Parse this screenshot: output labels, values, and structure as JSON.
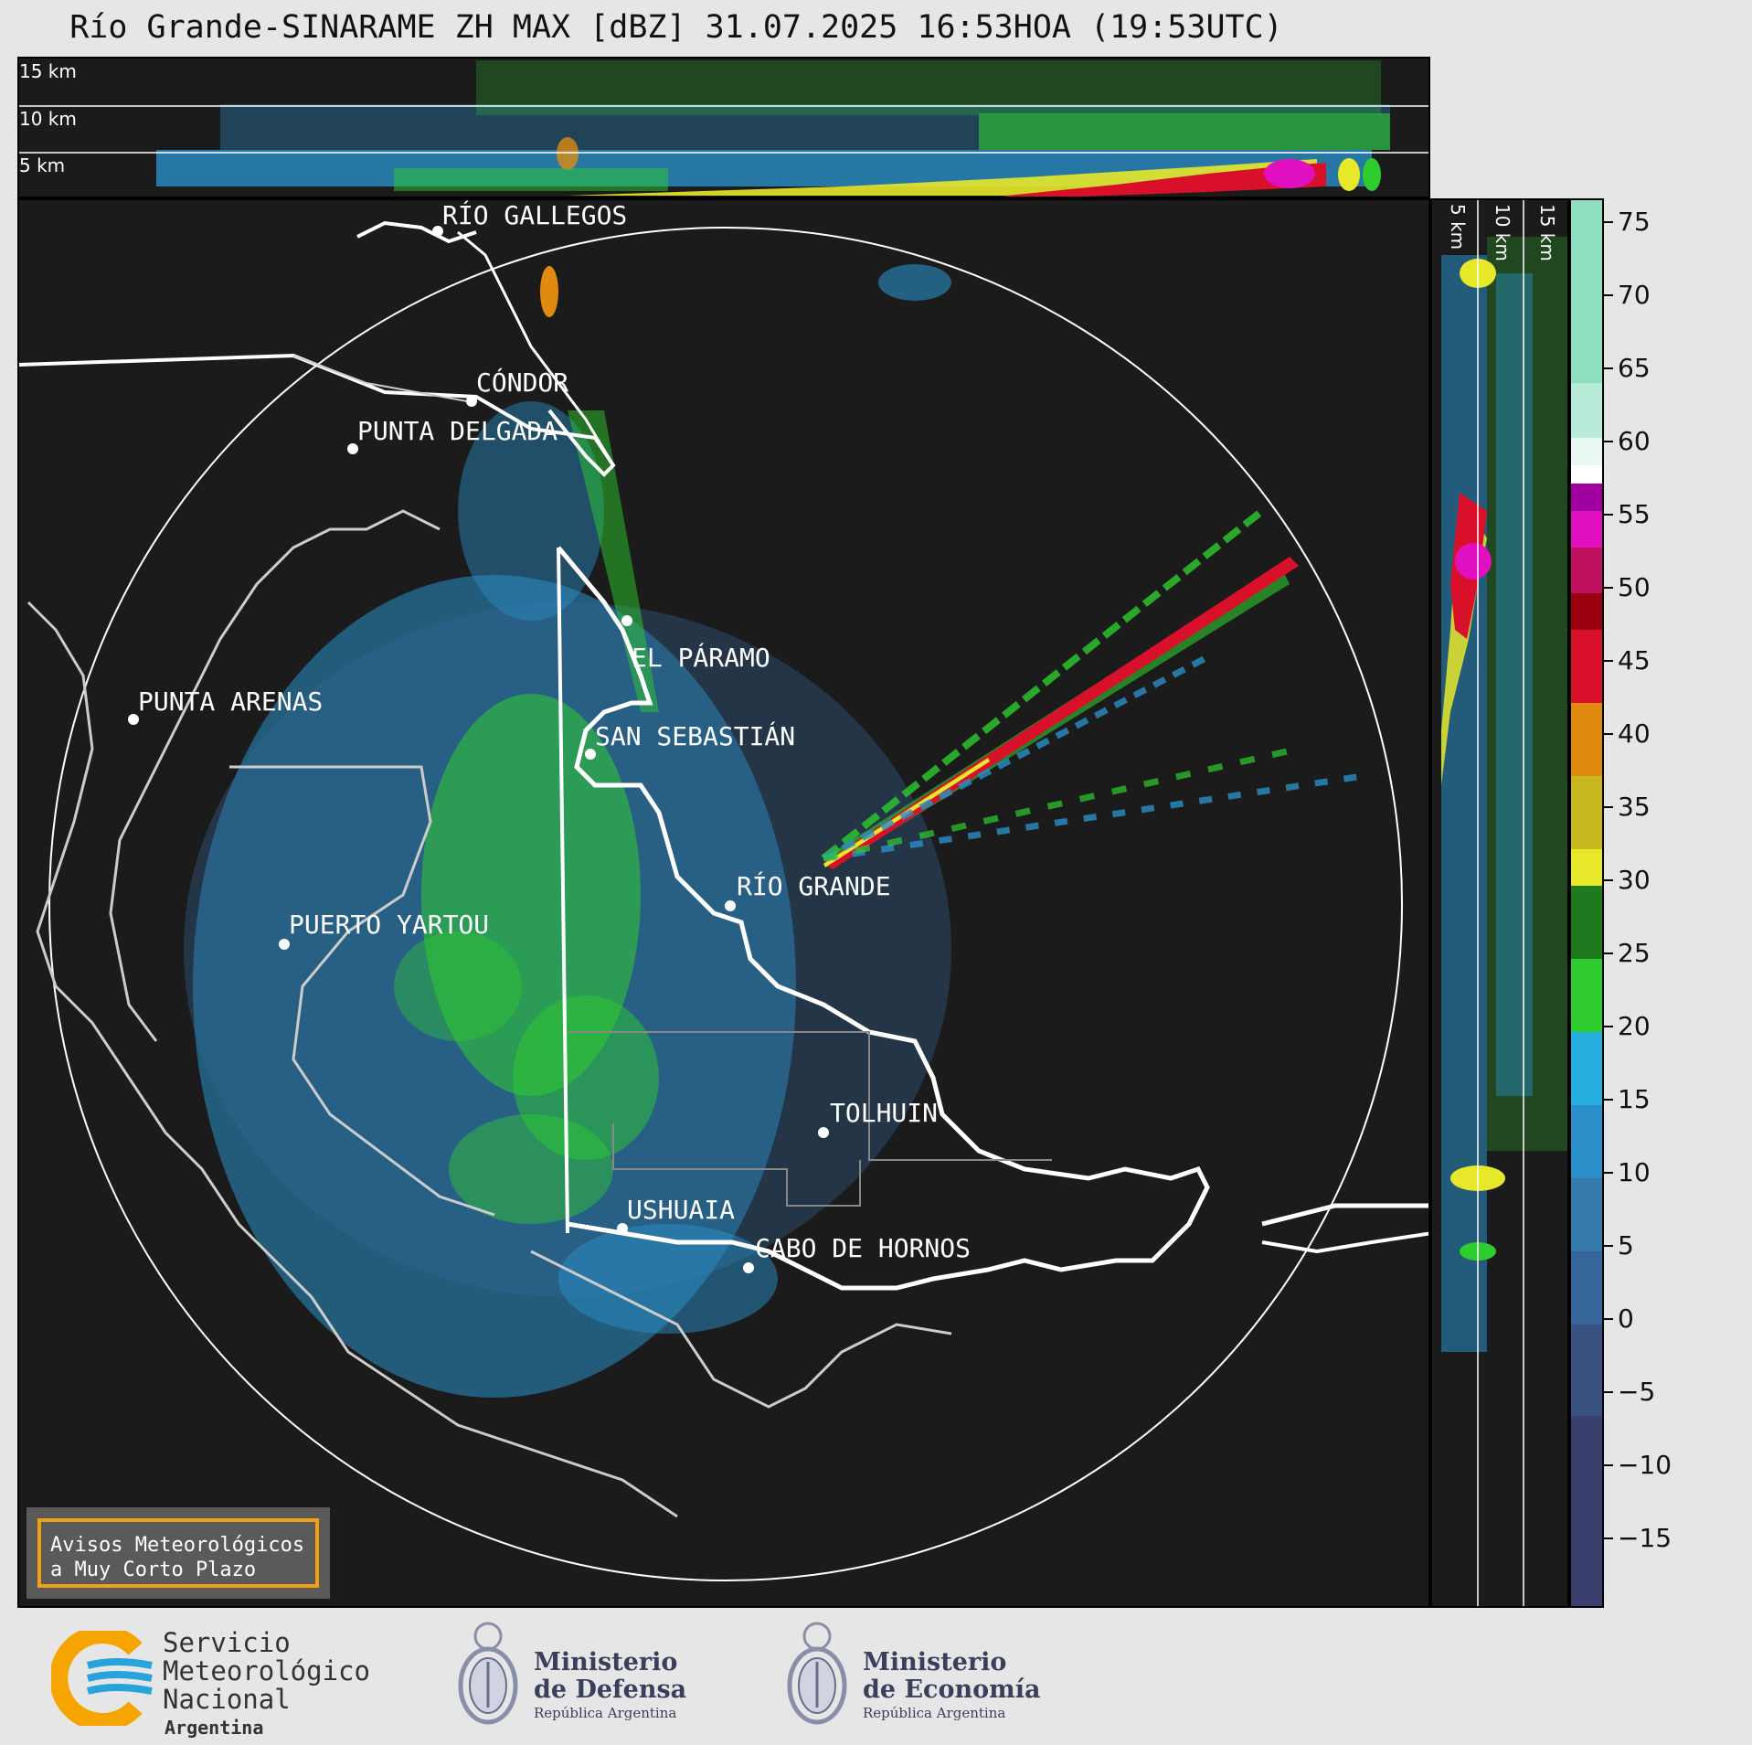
{
  "title": "Río Grande-SINARAME ZH MAX [dBZ] 31.07.2025 16:53HOA (19:53UTC)",
  "height_labels": [
    "15 km",
    "10 km",
    "5 km"
  ],
  "side_height_labels": [
    "5 km",
    "10 km",
    "15 km"
  ],
  "cities": [
    {
      "name": "RÍO GALLEGOS"
    },
    {
      "name": "CÓNDOR"
    },
    {
      "name": "PUNTA DELGADA"
    },
    {
      "name": "PUNTA ARENAS"
    },
    {
      "name": "EL PÁRAMO"
    },
    {
      "name": "SAN SEBASTIÁN"
    },
    {
      "name": "RÍO GRANDE"
    },
    {
      "name": "PUERTO YARTOU"
    },
    {
      "name": "TOLHUIN"
    },
    {
      "name": "USHUAIA"
    },
    {
      "name": "CABO DE HORNOS"
    }
  ],
  "notice": {
    "line1": "Avisos Meteorológicos",
    "line2": "a Muy Corto Plazo"
  },
  "colorbar": {
    "unit": "dBZ",
    "ticks": [
      "75",
      "70",
      "65",
      "60",
      "55",
      "50",
      "45",
      "40",
      "35",
      "30",
      "25",
      "20",
      "15",
      "10",
      "5",
      "0",
      "−5",
      "−10",
      "−15"
    ],
    "colors": {
      "very_low": "#3a3f6e",
      "low": "#34669a",
      "light_blue": "#2a8fc8",
      "cyan": "#27aee0",
      "green": "#2ecc2e",
      "dark_green": "#1f7a1f",
      "yellow": "#e8e82a",
      "orange": "#e08a10",
      "red": "#d8102a",
      "magenta": "#e010c0",
      "purple": "#a000a0",
      "white": "#ffffff",
      "mint": "#8fe0c0"
    }
  },
  "logos": {
    "smn": {
      "line1": "Servicio",
      "line2": "Meteorológico",
      "line3": "Nacional",
      "line4": "Argentina"
    },
    "defensa": {
      "line1": "Ministerio",
      "line2": "de Defensa",
      "sub": "República Argentina"
    },
    "economia": {
      "line1": "Ministerio",
      "line2": "de Economía",
      "sub": "República Argentina"
    }
  }
}
